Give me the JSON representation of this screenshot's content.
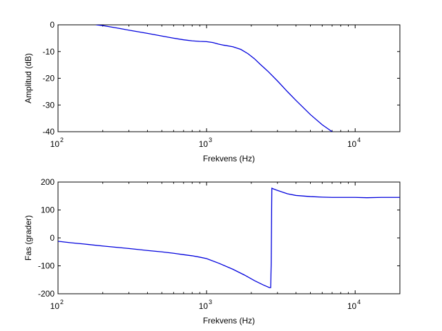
{
  "chart_data": [
    {
      "type": "line",
      "xlabel": "Frekvens (Hz)",
      "ylabel": "Amplitud (dB)",
      "xscale": "log",
      "xlim": [
        100,
        20000
      ],
      "ylim": [
        -40,
        0
      ],
      "xticks": [
        {
          "base": "10",
          "exp": "2",
          "value": 100
        },
        {
          "base": "10",
          "exp": "3",
          "value": 1000
        },
        {
          "base": "10",
          "exp": "4",
          "value": 10000
        }
      ],
      "yticks": [
        0,
        -10,
        -20,
        -30,
        -40
      ],
      "grid": false,
      "line_color": "#0000dd",
      "series": [
        {
          "x": [
            180,
            200,
            250,
            300,
            400,
            500,
            600,
            700,
            800,
            900,
            1000,
            1100,
            1200,
            1300,
            1500,
            1700,
            1900,
            2100,
            2300,
            2600,
            3000,
            3500,
            4000,
            5000,
            6000,
            7000
          ],
          "y": [
            0,
            -0.3,
            -1.2,
            -2.0,
            -3.2,
            -4.2,
            -5.0,
            -5.6,
            -6.0,
            -6.2,
            -6.3,
            -6.6,
            -7.2,
            -7.6,
            -8.2,
            -9.2,
            -10.8,
            -12.7,
            -14.8,
            -17.5,
            -21.0,
            -25.0,
            -28.3,
            -33.6,
            -37.4,
            -40
          ]
        }
      ]
    },
    {
      "type": "line",
      "xlabel": "Frekvens (Hz)",
      "ylabel": "Fas (grader)",
      "xscale": "log",
      "xlim": [
        100,
        20000
      ],
      "ylim": [
        -200,
        200
      ],
      "xticks": [
        {
          "base": "10",
          "exp": "2",
          "value": 100
        },
        {
          "base": "10",
          "exp": "3",
          "value": 1000
        },
        {
          "base": "10",
          "exp": "4",
          "value": 10000
        }
      ],
      "yticks": [
        200,
        100,
        0,
        -100,
        -200
      ],
      "grid": false,
      "line_color": "#0000dd",
      "series": [
        {
          "x": [
            100,
            120,
            150,
            200,
            300,
            400,
            500,
            600,
            700,
            800,
            900,
            1000,
            1200,
            1500,
            1800,
            2100,
            2400,
            2650,
            2700,
            2720,
            2750,
            2800,
            3000,
            3500,
            4000,
            5000,
            6000,
            7000,
            8000,
            10000,
            12000,
            15000,
            20000
          ],
          "y": [
            -12,
            -17,
            -22,
            -29,
            -38,
            -45,
            -50,
            -55,
            -60,
            -64,
            -69,
            -74,
            -90,
            -112,
            -133,
            -153,
            -168,
            -178,
            -178,
            -100,
            178,
            176,
            170,
            158,
            152,
            148,
            146,
            145,
            145,
            145,
            144,
            145,
            145
          ]
        }
      ]
    }
  ]
}
